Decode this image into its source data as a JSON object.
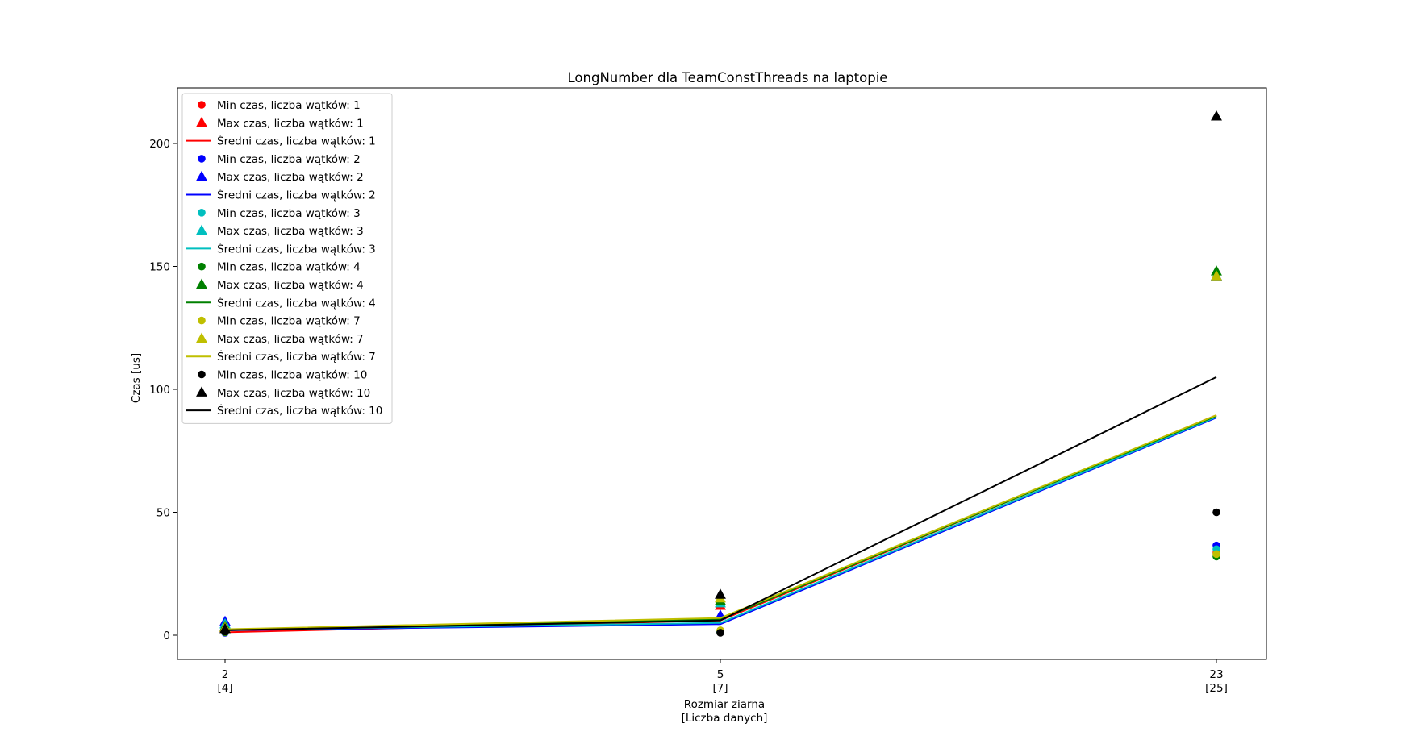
{
  "chart_data": {
    "type": "line",
    "title": "LongNumber dla TeamConstThreads na laptopie",
    "xlabel_lines": [
      "Rozmiar ziarna",
      "[Liczba danych]"
    ],
    "ylabel": "Czas [us]",
    "x": [
      2,
      5,
      23
    ],
    "x_tick_labels": [
      [
        "2",
        "[4]"
      ],
      [
        "5",
        "[7]"
      ],
      [
        "23",
        "[25]"
      ]
    ],
    "ylim": [
      -10,
      222
    ],
    "yticks": [
      0,
      50,
      100,
      150,
      200
    ],
    "grid": false,
    "legend_position": "upper left",
    "series": [
      {
        "threads": 1,
        "color": "#ff0000",
        "legend": {
          "min": "Min czas, liczba wątków: 1",
          "max": "Max czas, liczba wątków: 1",
          "avg": "Średni czas, liczba wątków: 1"
        },
        "min": [
          1.2,
          1.5,
          33.5
        ],
        "max": [
          3.0,
          12.0,
          146.0
        ],
        "avg": [
          1.2,
          6.0,
          89.5
        ]
      },
      {
        "threads": 2,
        "color": "#0000ff",
        "legend": {
          "min": "Min czas, liczba wątków: 2",
          "max": "Max czas, liczba wątków: 2",
          "avg": "Średni czas, liczba wątków: 2"
        },
        "min": [
          1.0,
          1.3,
          36.5
        ],
        "max": [
          5.5,
          8.0,
          146.0
        ],
        "avg": [
          2.0,
          4.5,
          88.5
        ]
      },
      {
        "threads": 3,
        "color": "#00bfbf",
        "legend": {
          "min": "Min czas, liczba wątków: 3",
          "max": "Max czas, liczba wątków: 3",
          "avg": "Średni czas, liczba wątków: 3"
        },
        "min": [
          1.3,
          1.4,
          35.0
        ],
        "max": [
          4.5,
          13.0,
          146.0
        ],
        "avg": [
          2.2,
          5.0,
          88.8
        ]
      },
      {
        "threads": 4,
        "color": "#008000",
        "legend": {
          "min": "Min czas, liczba wątków: 4",
          "max": "Max czas, liczba wątków: 4",
          "avg": "Średni czas, liczba wątków: 4"
        },
        "min": [
          1.2,
          1.2,
          32.0
        ],
        "max": [
          3.5,
          14.0,
          148.0
        ],
        "avg": [
          2.1,
          6.5,
          89.2
        ]
      },
      {
        "threads": 7,
        "color": "#bfbf00",
        "legend": {
          "min": "Min czas, liczba wątków: 7",
          "max": "Max czas, liczba wątków: 7",
          "avg": "Średni czas, liczba wątków: 7"
        },
        "min": [
          1.4,
          2.0,
          33.0
        ],
        "max": [
          3.0,
          15.0,
          146.0
        ],
        "avg": [
          2.4,
          7.0,
          89.5
        ]
      },
      {
        "threads": 10,
        "color": "#000000",
        "legend": {
          "min": "Min czas, liczba wątków: 10",
          "max": "Max czas, liczba wątków: 10",
          "avg": "Średni czas, liczba wątków: 10"
        },
        "min": [
          1.5,
          1.0,
          50.0
        ],
        "max": [
          2.5,
          16.5,
          211.0
        ],
        "avg": [
          2.0,
          6.0,
          105.0
        ]
      }
    ]
  }
}
